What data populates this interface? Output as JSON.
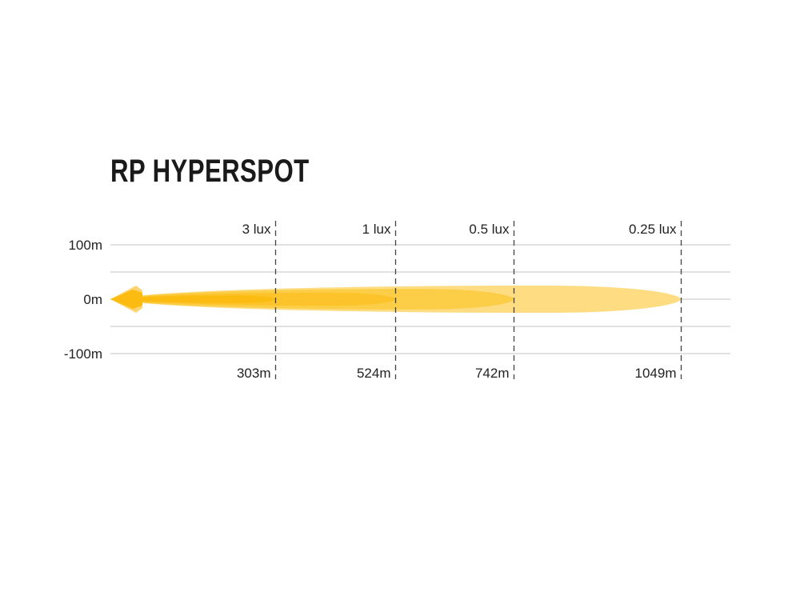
{
  "chart_data": {
    "type": "area",
    "title": "RP HYPERSPOT",
    "y_ticks": [
      {
        "value": 100,
        "label": "100m"
      },
      {
        "value": 0,
        "label": "0m"
      },
      {
        "value": -100,
        "label": "-100m"
      }
    ],
    "ylim": [
      -100,
      100
    ],
    "grid_step": 50,
    "grid": true,
    "xlim": [
      0,
      1140
    ],
    "zones": [
      {
        "lux_label": "3 lux",
        "distance": 303,
        "distance_label": "303m",
        "half_width": 7,
        "color": "#FBBB10"
      },
      {
        "lux_label": "1 lux",
        "distance": 524,
        "distance_label": "524m",
        "half_width": 12,
        "color": "#FCC32A"
      },
      {
        "lux_label": "0.5 lux",
        "distance": 742,
        "distance_label": "742m",
        "half_width": 19,
        "color": "#FCCD46"
      },
      {
        "lux_label": "0.25 lux",
        "distance": 1049,
        "distance_label": "1049m",
        "half_width": 25,
        "color": "#FDDC82"
      }
    ],
    "gridline_color": "#CFCFCF",
    "marker_line_color": "#444444"
  }
}
